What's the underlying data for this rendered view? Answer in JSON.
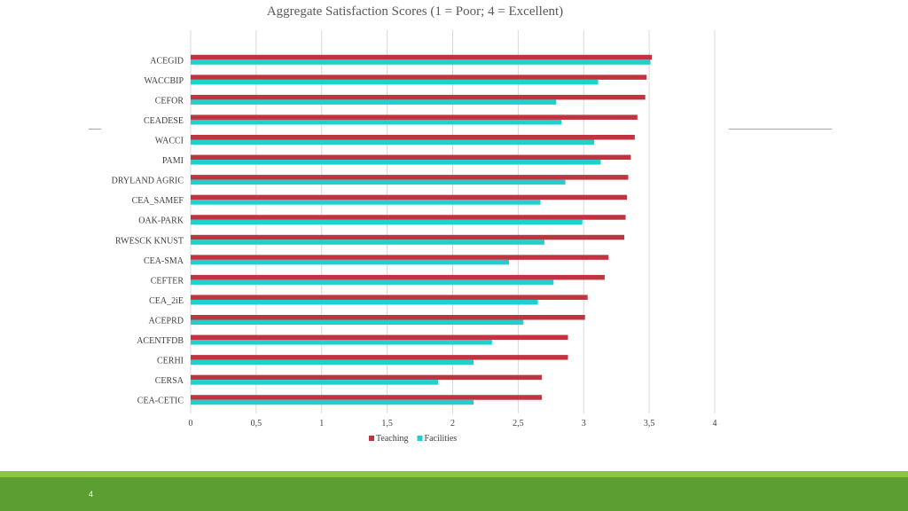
{
  "slide": {
    "page_number": "4"
  },
  "colors": {
    "teaching": "#c0343f",
    "facilities": "#20d0cc",
    "gridline": "#d9d9d9",
    "text": "#404040",
    "footer": "#5d9e32",
    "footer_light": "#8cc63f"
  },
  "chart_data": {
    "type": "bar",
    "orientation": "horizontal",
    "title": "Aggregate Satisfaction Scores (1 = Poor; 4 = Excellent)",
    "xlabel": "",
    "ylabel": "",
    "xlim": [
      0,
      4
    ],
    "xticks": [
      0,
      0.5,
      1,
      1.5,
      2,
      2.5,
      3,
      3.5,
      4
    ],
    "xtick_labels": [
      "0",
      "0,5",
      "1",
      "1,5",
      "2",
      "2,5",
      "3",
      "3,5",
      "4"
    ],
    "grid": "vertical",
    "legend_position": "bottom",
    "categories": [
      "ACEGID",
      "WACCBIP",
      "CEFOR",
      "CEADESE",
      "WACCI",
      "PAMI",
      "DRYLAND AGRIC",
      "CEA_SAMEF",
      "OAK-PARK",
      "RWESCK KNUST",
      "CEA-SMA",
      "CEFTER",
      "CEA_2iE",
      "ACEPRD",
      "ACENTFDB",
      "CERHI",
      "CERSA",
      "CEA-CETIC"
    ],
    "series": [
      {
        "name": "Teaching",
        "color": "#c0343f",
        "values": [
          3.52,
          3.48,
          3.47,
          3.41,
          3.39,
          3.36,
          3.34,
          3.33,
          3.32,
          3.31,
          3.19,
          3.16,
          3.03,
          3.01,
          2.88,
          2.88,
          2.68,
          2.68
        ]
      },
      {
        "name": "Facilities",
        "color": "#20d0cc",
        "values": [
          3.51,
          3.11,
          2.79,
          2.83,
          3.08,
          3.13,
          2.86,
          2.67,
          2.99,
          2.7,
          2.43,
          2.77,
          2.65,
          2.54,
          2.3,
          2.16,
          1.89,
          2.16
        ]
      }
    ]
  }
}
